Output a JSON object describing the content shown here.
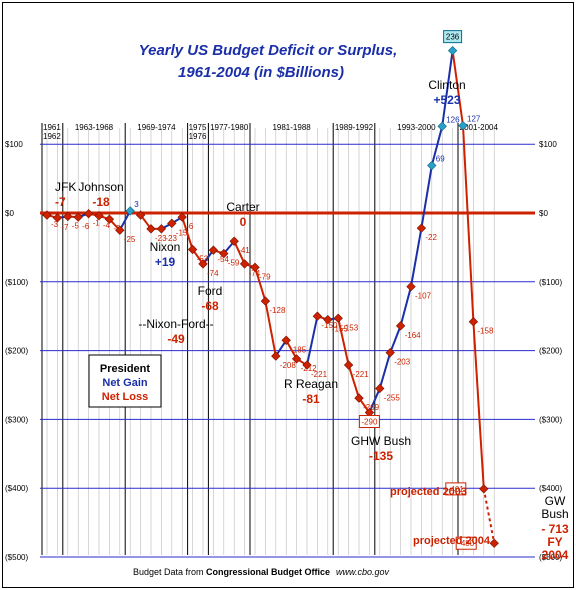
{
  "chart_data": {
    "type": "line",
    "title": "Yearly US Budget Deficit or Surplus,",
    "subtitle": "1961-2004 (in $Billions)",
    "ylim": [
      -500,
      233
    ],
    "y_ticks": [
      {
        "value": 100,
        "label": "$100"
      },
      {
        "value": 0,
        "label": "$0"
      },
      {
        "value": -100,
        "label": "($100)"
      },
      {
        "value": -200,
        "label": "($200)"
      },
      {
        "value": -300,
        "label": "($300)"
      },
      {
        "value": -400,
        "label": "($400)"
      },
      {
        "value": -500,
        "label": "($500)"
      }
    ],
    "periods": [
      {
        "label": "1961\n1962",
        "start": 1961
      },
      {
        "label": "1963-1968",
        "start": 1963
      },
      {
        "label": "1969-1974",
        "start": 1969
      },
      {
        "label": "1975\n1976",
        "start": 1975
      },
      {
        "label": "1977-1980",
        "start": 1977
      },
      {
        "label": "1981-1988",
        "start": 1981
      },
      {
        "label": "1989-1992",
        "start": 1989
      },
      {
        "label": "1993-2000",
        "start": 1993
      },
      {
        "label": "2001-2004",
        "start": 2001
      }
    ],
    "series": [
      {
        "year": 1961,
        "value": -3,
        "label": "-3"
      },
      {
        "year": 1962,
        "value": -7,
        "label": "-7"
      },
      {
        "year": 1963,
        "value": -5,
        "label": "-5"
      },
      {
        "year": 1964,
        "value": -6,
        "label": "-6"
      },
      {
        "year": 1965,
        "value": -1,
        "label": "-1"
      },
      {
        "year": 1966,
        "value": -4,
        "label": "-4"
      },
      {
        "year": 1967,
        "value": -9,
        "label": "-9"
      },
      {
        "year": 1968,
        "value": -25,
        "label": "-25"
      },
      {
        "year": 1969,
        "value": 3,
        "label": "3"
      },
      {
        "year": 1970,
        "value": -3,
        "label": ""
      },
      {
        "year": 1971,
        "value": -23,
        "label": "-23"
      },
      {
        "year": 1972,
        "value": -23,
        "label": "-23"
      },
      {
        "year": 1973,
        "value": -15,
        "label": "-15"
      },
      {
        "year": 1974,
        "value": -6,
        "label": "-6"
      },
      {
        "year": 1975,
        "value": -53,
        "label": "-53"
      },
      {
        "year": 1976,
        "value": -74,
        "label": "-74"
      },
      {
        "year": 1977,
        "value": -54,
        "label": "-54"
      },
      {
        "year": 1978,
        "value": -59,
        "label": "-59"
      },
      {
        "year": 1979,
        "value": -41,
        "label": "-41"
      },
      {
        "year": 1980,
        "value": -74,
        "label": "-74"
      },
      {
        "year": 1981,
        "value": -79,
        "label": "-79"
      },
      {
        "year": 1982,
        "value": -128,
        "label": "-128"
      },
      {
        "year": 1983,
        "value": -208,
        "label": "-208"
      },
      {
        "year": 1984,
        "value": -185,
        "label": "-185"
      },
      {
        "year": 1985,
        "value": -212,
        "label": "-212"
      },
      {
        "year": 1986,
        "value": -221,
        "label": "-221"
      },
      {
        "year": 1987,
        "value": -150,
        "label": "-150"
      },
      {
        "year": 1988,
        "value": -155,
        "label": "-155"
      },
      {
        "year": 1989,
        "value": -153,
        "label": "-153"
      },
      {
        "year": 1990,
        "value": -221,
        "label": "-221"
      },
      {
        "year": 1991,
        "value": -269,
        "label": "-269"
      },
      {
        "year": 1992,
        "value": -290,
        "label": "-290"
      },
      {
        "year": 1993,
        "value": -255,
        "label": "-255"
      },
      {
        "year": 1994,
        "value": -203,
        "label": "-203"
      },
      {
        "year": 1995,
        "value": -164,
        "label": "-164"
      },
      {
        "year": 1996,
        "value": -107,
        "label": "-107"
      },
      {
        "year": 1997,
        "value": -22,
        "label": "-22"
      },
      {
        "year": 1998,
        "value": 69,
        "label": "69"
      },
      {
        "year": 1999,
        "value": 126,
        "label": "126"
      },
      {
        "year": 2000,
        "value": 236,
        "label": "236"
      },
      {
        "year": 2001,
        "value": 127,
        "label": "127"
      },
      {
        "year": 2002,
        "value": -158,
        "label": "-158"
      },
      {
        "year": 2003,
        "value": -401,
        "label": "-401"
      },
      {
        "year": 2004,
        "value": -480,
        "label": "-480"
      }
    ],
    "presidents": [
      {
        "name": "JFK",
        "value": "-7"
      },
      {
        "name": "Johnson",
        "value": "-18"
      },
      {
        "name": "Nixon",
        "value": "+19"
      },
      {
        "name": "Ford",
        "value": "-68"
      },
      {
        "name": "Carter",
        "value": "0"
      },
      {
        "name": "--Nixon-Ford--",
        "value": "-49"
      },
      {
        "name": "R Reagan",
        "value": "-81"
      },
      {
        "name": "GHW Bush",
        "value": "-135"
      },
      {
        "name": "Clinton",
        "value": "+523"
      },
      {
        "name": "GW\nBush",
        "value": "- 713\nFY\n2004"
      }
    ],
    "legend": {
      "title": "President",
      "gain": "Net Gain",
      "loss": "Net Loss"
    },
    "annotations": {
      "projected_2003": "projected 2003",
      "projected_2004": "projected 2004"
    },
    "footer": {
      "prefix": "Budget Data from ",
      "source": "Congressional Budget Office",
      "url": "www.cbo.gov"
    },
    "colors": {
      "loss": "#cc2200",
      "gain": "#1a2fa8",
      "grid": "#2b2bd0",
      "zero_line": "#cc2200",
      "surplus_marker": "#2aa0c8"
    }
  }
}
